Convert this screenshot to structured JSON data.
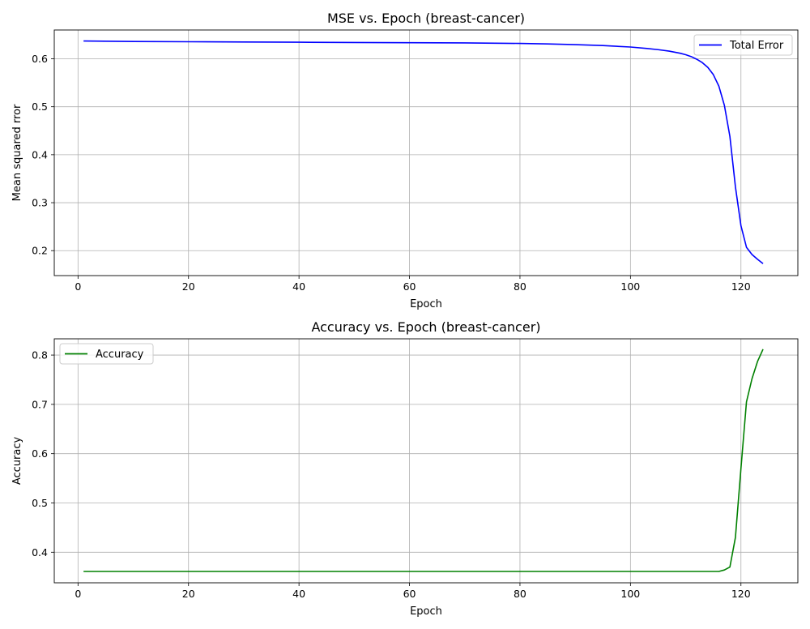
{
  "chart_data": [
    {
      "type": "line",
      "title": "MSE vs. Epoch (breast-cancer)",
      "xlabel": "Epoch",
      "ylabel": "Mean squared rror",
      "xlim": [
        -4.3,
        130.3
      ],
      "ylim": [
        0.148,
        0.66
      ],
      "xticks": [
        0,
        20,
        40,
        60,
        80,
        100,
        120
      ],
      "yticks": [
        0.2,
        0.3,
        0.4,
        0.5,
        0.6
      ],
      "xtick_labels": [
        "0",
        "20",
        "40",
        "60",
        "80",
        "100",
        "120"
      ],
      "ytick_labels": [
        "0.2",
        "0.3",
        "0.4",
        "0.5",
        "0.6"
      ],
      "grid": true,
      "legend": {
        "position": "upper-right"
      },
      "series": [
        {
          "name": "Total Error",
          "color": "#0000ff",
          "x": [
            1,
            10,
            20,
            30,
            40,
            50,
            60,
            70,
            80,
            85,
            90,
            95,
            100,
            103,
            105,
            107,
            109,
            110,
            111,
            112,
            113,
            114,
            115,
            116,
            117,
            118,
            119,
            120,
            121,
            122,
            123,
            124
          ],
          "y": [
            0.637,
            0.636,
            0.6355,
            0.635,
            0.6345,
            0.634,
            0.6335,
            0.633,
            0.632,
            0.631,
            0.6295,
            0.6275,
            0.6245,
            0.6215,
            0.619,
            0.616,
            0.6115,
            0.6085,
            0.6045,
            0.599,
            0.592,
            0.582,
            0.567,
            0.543,
            0.503,
            0.438,
            0.333,
            0.252,
            0.207,
            0.192,
            0.182,
            0.173
          ]
        }
      ]
    },
    {
      "type": "line",
      "title": "Accuracy vs. Epoch (breast-cancer)",
      "xlabel": "Epoch",
      "ylabel": "Accuracy",
      "xlim": [
        -4.3,
        130.3
      ],
      "ylim": [
        0.338,
        0.833
      ],
      "xticks": [
        0,
        20,
        40,
        60,
        80,
        100,
        120
      ],
      "yticks": [
        0.4,
        0.5,
        0.6,
        0.7,
        0.8
      ],
      "xtick_labels": [
        "0",
        "20",
        "40",
        "60",
        "80",
        "100",
        "120"
      ],
      "ytick_labels": [
        "0.4",
        "0.5",
        "0.6",
        "0.7",
        "0.8"
      ],
      "grid": true,
      "legend": {
        "position": "upper-left"
      },
      "series": [
        {
          "name": "Accuracy",
          "color": "#008000",
          "x": [
            1,
            20,
            40,
            60,
            80,
            100,
            116,
            117,
            118,
            119,
            120,
            121,
            122,
            123,
            124
          ],
          "y": [
            0.361,
            0.361,
            0.361,
            0.361,
            0.361,
            0.361,
            0.361,
            0.364,
            0.37,
            0.43,
            0.57,
            0.705,
            0.752,
            0.787,
            0.812
          ]
        }
      ]
    }
  ]
}
